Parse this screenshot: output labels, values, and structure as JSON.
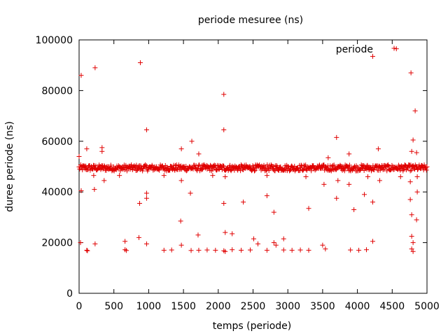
{
  "chart_data": {
    "type": "scatter",
    "title": "periode mesuree (ns)",
    "xlabel": "temps (periode)",
    "ylabel": "duree periode (ns)",
    "xlim": [
      0,
      5000
    ],
    "ylim": [
      0,
      100000
    ],
    "x_ticks": [
      "0",
      "500",
      "1000",
      "1500",
      "2000",
      "2500",
      "3000",
      "3500",
      "4000",
      "4500",
      "5000"
    ],
    "y_ticks": [
      "0",
      "20000",
      "40000",
      "60000",
      "80000",
      "100000"
    ],
    "grid": false,
    "legend_position": "top-right",
    "marker": "plus",
    "series": [
      {
        "name": "periode",
        "color": "#e00000",
        "band": {
          "x_start": 0,
          "x_end": 5000,
          "center": 49500,
          "half_width": 1200
        },
        "points": [
          [
            30,
            86000
          ],
          [
            230,
            89000
          ],
          [
            880,
            91000
          ],
          [
            2080,
            78500
          ],
          [
            4220,
            93500
          ],
          [
            4560,
            96500
          ],
          [
            4770,
            87000
          ],
          [
            4830,
            72000
          ],
          [
            970,
            64500
          ],
          [
            2080,
            64500
          ],
          [
            1620,
            60000
          ],
          [
            3700,
            61500
          ],
          [
            4800,
            60500
          ],
          [
            110,
            57000
          ],
          [
            330,
            57500
          ],
          [
            330,
            56000
          ],
          [
            1470,
            57000
          ],
          [
            1720,
            55000
          ],
          [
            3580,
            53500
          ],
          [
            3880,
            55000
          ],
          [
            4300,
            57000
          ],
          [
            4780,
            56000
          ],
          [
            4850,
            55500
          ],
          [
            0,
            54000
          ],
          [
            210,
            46500
          ],
          [
            360,
            44500
          ],
          [
            580,
            46500
          ],
          [
            1220,
            46500
          ],
          [
            1470,
            44500
          ],
          [
            1920,
            46500
          ],
          [
            2100,
            46000
          ],
          [
            2700,
            46500
          ],
          [
            3260,
            46000
          ],
          [
            3520,
            43000
          ],
          [
            3720,
            44500
          ],
          [
            3880,
            43000
          ],
          [
            4150,
            46000
          ],
          [
            4320,
            44500
          ],
          [
            4620,
            46000
          ],
          [
            4860,
            46000
          ],
          [
            4760,
            44000
          ],
          [
            30,
            40500
          ],
          [
            220,
            41000
          ],
          [
            970,
            39500
          ],
          [
            1600,
            39500
          ],
          [
            2700,
            38500
          ],
          [
            4100,
            39000
          ],
          [
            4860,
            40000
          ],
          [
            870,
            35500
          ],
          [
            970,
            37500
          ],
          [
            2080,
            35500
          ],
          [
            2360,
            36000
          ],
          [
            3700,
            37500
          ],
          [
            3950,
            33000
          ],
          [
            4220,
            36000
          ],
          [
            4760,
            37000
          ],
          [
            3300,
            33500
          ],
          [
            2800,
            32000
          ],
          [
            4780,
            31000
          ],
          [
            4850,
            29000
          ],
          [
            1460,
            28500
          ],
          [
            20,
            20000
          ],
          [
            230,
            19500
          ],
          [
            660,
            20500
          ],
          [
            860,
            22000
          ],
          [
            970,
            19500
          ],
          [
            1710,
            23000
          ],
          [
            2100,
            24000
          ],
          [
            2200,
            23500
          ],
          [
            2510,
            21500
          ],
          [
            2800,
            20000
          ],
          [
            2940,
            21500
          ],
          [
            3500,
            19000
          ],
          [
            4220,
            20500
          ],
          [
            4780,
            22500
          ],
          [
            4800,
            20000
          ],
          [
            110,
            17000
          ],
          [
            120,
            16800
          ],
          [
            660,
            17200
          ],
          [
            680,
            16900
          ],
          [
            1220,
            17000
          ],
          [
            1330,
            17100
          ],
          [
            1470,
            19000
          ],
          [
            1610,
            16900
          ],
          [
            1720,
            17000
          ],
          [
            1840,
            17100
          ],
          [
            1960,
            17000
          ],
          [
            2080,
            16800
          ],
          [
            2100,
            16500
          ],
          [
            2200,
            17200
          ],
          [
            2330,
            17000
          ],
          [
            2460,
            17100
          ],
          [
            2570,
            19500
          ],
          [
            2700,
            17000
          ],
          [
            2830,
            19000
          ],
          [
            2940,
            17100
          ],
          [
            3060,
            17000
          ],
          [
            3180,
            17100
          ],
          [
            3300,
            17000
          ],
          [
            3540,
            17500
          ],
          [
            3900,
            17100
          ],
          [
            4020,
            17000
          ],
          [
            4130,
            17200
          ],
          [
            4780,
            17500
          ],
          [
            4800,
            16500
          ]
        ]
      }
    ]
  }
}
